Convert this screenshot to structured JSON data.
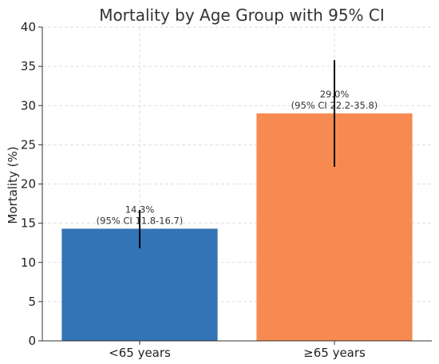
{
  "chart_data": {
    "type": "bar",
    "title": "Mortality by Age Group with 95% CI",
    "xlabel": "",
    "ylabel": "Mortality (%)",
    "ylim": [
      0,
      40
    ],
    "yticks": [
      0,
      5,
      10,
      15,
      20,
      25,
      30,
      35,
      40
    ],
    "grid": true,
    "categories": [
      "<65 years",
      "≥65 years"
    ],
    "values": [
      14.3,
      29.0
    ],
    "ci_lower": [
      11.8,
      22.2
    ],
    "ci_upper": [
      16.7,
      35.8
    ],
    "bar_colors": [
      "#3274b5",
      "#f78a50"
    ],
    "errorbar_color": "#000000",
    "data_labels": [
      [
        "14.3%",
        "(95% CI 11.8-16.7)"
      ],
      [
        "29.0%",
        "(95% CI 22.2-35.8)"
      ]
    ]
  }
}
